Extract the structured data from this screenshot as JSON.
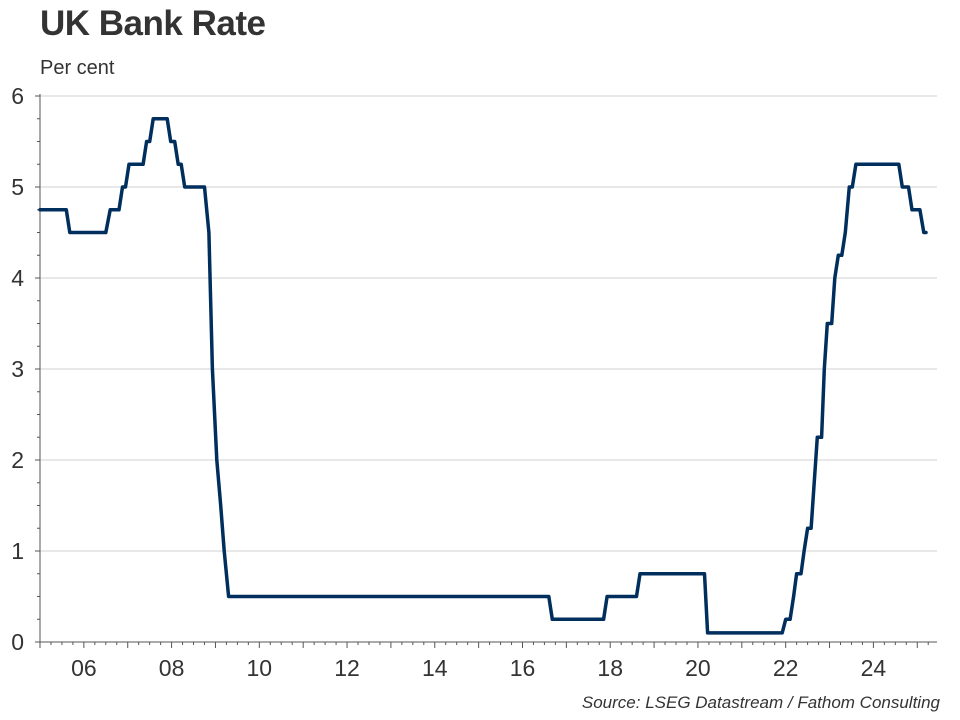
{
  "chart": {
    "title": "UK Bank Rate",
    "subtitle": "Per cent",
    "source": "Source: LSEG Datastream / Fathom Consulting"
  },
  "colors": {
    "line": "#002e5d",
    "grid": "#d2d2d2",
    "axis": "#555555",
    "text": "#333333"
  },
  "chart_data": {
    "type": "line",
    "title": "UK Bank Rate",
    "ylabel": "Per cent",
    "xlim": [
      2005.0,
      2025.45
    ],
    "ylim": [
      0,
      6
    ],
    "y_ticks": [
      0,
      1,
      2,
      3,
      4,
      5,
      6
    ],
    "x_ticks": [
      {
        "value": 2006,
        "label": "06"
      },
      {
        "value": 2008,
        "label": "08"
      },
      {
        "value": 2010,
        "label": "10"
      },
      {
        "value": 2012,
        "label": "12"
      },
      {
        "value": 2014,
        "label": "14"
      },
      {
        "value": 2016,
        "label": "16"
      },
      {
        "value": 2018,
        "label": "18"
      },
      {
        "value": 2020,
        "label": "20"
      },
      {
        "value": 2022,
        "label": "22"
      },
      {
        "value": 2024,
        "label": "24"
      }
    ],
    "grid": "horizontal",
    "series": [
      {
        "color": "#002e5d",
        "points": [
          [
            2005.0,
            4.75
          ],
          [
            2005.6,
            4.75
          ],
          [
            2005.68,
            4.5
          ],
          [
            2006.5,
            4.5
          ],
          [
            2006.6,
            4.75
          ],
          [
            2006.8,
            4.75
          ],
          [
            2006.88,
            5.0
          ],
          [
            2006.95,
            5.0
          ],
          [
            2007.03,
            5.25
          ],
          [
            2007.35,
            5.25
          ],
          [
            2007.43,
            5.5
          ],
          [
            2007.5,
            5.5
          ],
          [
            2007.58,
            5.75
          ],
          [
            2007.9,
            5.75
          ],
          [
            2007.98,
            5.5
          ],
          [
            2008.07,
            5.5
          ],
          [
            2008.15,
            5.25
          ],
          [
            2008.22,
            5.25
          ],
          [
            2008.3,
            5.0
          ],
          [
            2008.75,
            5.0
          ],
          [
            2008.85,
            4.5
          ],
          [
            2008.93,
            3.0
          ],
          [
            2009.03,
            2.0
          ],
          [
            2009.12,
            1.5
          ],
          [
            2009.2,
            1.0
          ],
          [
            2009.3,
            0.5
          ],
          [
            2016.6,
            0.5
          ],
          [
            2016.68,
            0.25
          ],
          [
            2017.85,
            0.25
          ],
          [
            2017.93,
            0.5
          ],
          [
            2018.6,
            0.5
          ],
          [
            2018.68,
            0.75
          ],
          [
            2020.15,
            0.75
          ],
          [
            2020.22,
            0.1
          ],
          [
            2021.92,
            0.1
          ],
          [
            2022.0,
            0.25
          ],
          [
            2022.1,
            0.25
          ],
          [
            2022.18,
            0.5
          ],
          [
            2022.25,
            0.75
          ],
          [
            2022.35,
            0.75
          ],
          [
            2022.42,
            1.0
          ],
          [
            2022.5,
            1.25
          ],
          [
            2022.58,
            1.25
          ],
          [
            2022.65,
            1.75
          ],
          [
            2022.72,
            2.25
          ],
          [
            2022.82,
            2.25
          ],
          [
            2022.88,
            3.0
          ],
          [
            2022.95,
            3.5
          ],
          [
            2023.05,
            3.5
          ],
          [
            2023.12,
            4.0
          ],
          [
            2023.2,
            4.25
          ],
          [
            2023.28,
            4.25
          ],
          [
            2023.36,
            4.5
          ],
          [
            2023.45,
            5.0
          ],
          [
            2023.52,
            5.0
          ],
          [
            2023.6,
            5.25
          ],
          [
            2024.58,
            5.25
          ],
          [
            2024.66,
            5.0
          ],
          [
            2024.8,
            5.0
          ],
          [
            2024.88,
            4.75
          ],
          [
            2025.06,
            4.75
          ],
          [
            2025.15,
            4.5
          ],
          [
            2025.2,
            4.5
          ]
        ]
      }
    ]
  }
}
